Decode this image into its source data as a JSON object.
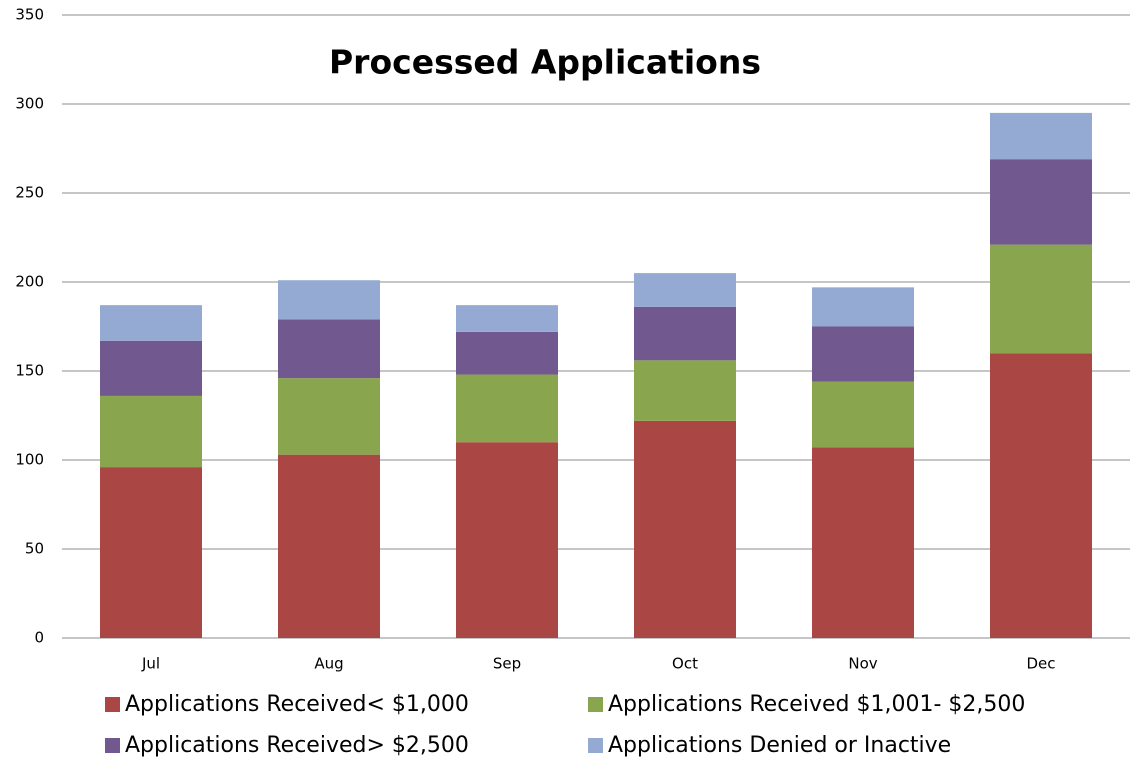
{
  "chart_data": {
    "type": "stacked_bar",
    "title": "Processed Applications",
    "categories": [
      "Jul",
      "Aug",
      "Sep",
      "Oct",
      "Nov",
      "Dec"
    ],
    "series": [
      {
        "name": "Applications Received< $1,000",
        "color": "#aa4643",
        "values": [
          96,
          103,
          110,
          122,
          107,
          160
        ]
      },
      {
        "name": "Applications Received $1,001- $2,500",
        "color": "#89a54e",
        "values": [
          40,
          43,
          38,
          34,
          37,
          61
        ]
      },
      {
        "name": "Applications Received> $2,500",
        "color": "#71588f",
        "values": [
          31,
          33,
          24,
          30,
          31,
          48
        ]
      },
      {
        "name": "Applications Denied or Inactive",
        "color": "#95aad2",
        "values": [
          20,
          22,
          15,
          19,
          22,
          26
        ]
      }
    ],
    "ylim": [
      0,
      350
    ],
    "yticks": [
      0,
      50,
      100,
      150,
      200,
      250,
      300,
      350
    ],
    "grid": true
  }
}
